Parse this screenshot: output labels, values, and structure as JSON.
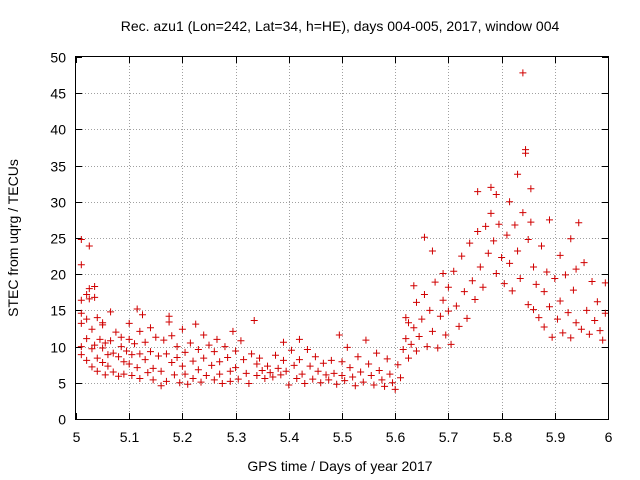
{
  "chart_data": {
    "type": "scatter",
    "title": "Rec. azu1 (Lon=242, Lat=34, h=HE), days 004-005, 2017, window 004",
    "xlabel": "GPS time / Days of year 2017",
    "ylabel": "STEC from uqrg / TECUs",
    "xlim": [
      5,
      6
    ],
    "ylim": [
      0,
      50
    ],
    "xticks": [
      "5",
      "5.1",
      "5.2",
      "5.3",
      "5.4",
      "5.5",
      "5.6",
      "5.7",
      "5.8",
      "5.9",
      "6"
    ],
    "yticks": [
      "0",
      "5",
      "10",
      "15",
      "20",
      "25",
      "30",
      "35",
      "40",
      "45",
      "50"
    ],
    "grid": true,
    "marker": "plus",
    "color": "#d00000",
    "series": [
      {
        "points": [
          [
            5.01,
            24.8
          ],
          [
            5.01,
            21.3
          ],
          [
            5.01,
            16.4
          ],
          [
            5.01,
            14.6
          ],
          [
            5.01,
            13.2
          ],
          [
            5.01,
            10.0
          ],
          [
            5.01,
            8.9
          ],
          [
            5.02,
            17.2
          ],
          [
            5.02,
            13.8
          ],
          [
            5.02,
            11.1
          ],
          [
            5.02,
            8.1
          ],
          [
            5.025,
            23.9
          ],
          [
            5.025,
            18.0
          ],
          [
            5.025,
            16.6
          ],
          [
            5.03,
            12.4
          ],
          [
            5.03,
            9.7
          ],
          [
            5.03,
            7.2
          ],
          [
            5.035,
            18.3
          ],
          [
            5.035,
            16.8
          ],
          [
            5.035,
            10.2
          ],
          [
            5.04,
            14.0
          ],
          [
            5.04,
            8.4
          ],
          [
            5.04,
            6.6
          ],
          [
            5.045,
            11.0
          ],
          [
            5.05,
            13.3
          ],
          [
            5.05,
            13.0
          ],
          [
            5.05,
            9.8
          ],
          [
            5.05,
            7.8
          ],
          [
            5.055,
            10.5
          ],
          [
            5.055,
            6.1
          ],
          [
            5.06,
            8.9
          ],
          [
            5.06,
            7.3
          ],
          [
            5.065,
            14.8
          ],
          [
            5.065,
            10.8
          ],
          [
            5.07,
            9.1
          ],
          [
            5.07,
            6.5
          ],
          [
            5.075,
            12.0
          ],
          [
            5.08,
            8.6
          ],
          [
            5.08,
            5.9
          ],
          [
            5.085,
            11.3
          ],
          [
            5.085,
            10.0
          ],
          [
            5.09,
            7.9
          ],
          [
            5.09,
            6.2
          ],
          [
            5.095,
            9.4
          ],
          [
            5.1,
            13.2
          ],
          [
            5.1,
            11.0
          ],
          [
            5.1,
            7.6
          ],
          [
            5.105,
            8.9
          ],
          [
            5.105,
            6.0
          ],
          [
            5.11,
            10.4
          ],
          [
            5.115,
            15.2
          ],
          [
            5.115,
            7.1
          ],
          [
            5.12,
            12.1
          ],
          [
            5.12,
            9.0
          ],
          [
            5.12,
            5.6
          ],
          [
            5.125,
            14.4
          ],
          [
            5.13,
            10.6
          ],
          [
            5.13,
            8.2
          ],
          [
            5.135,
            6.4
          ],
          [
            5.14,
            12.6
          ],
          [
            5.14,
            9.3
          ],
          [
            5.145,
            7.0
          ],
          [
            5.145,
            5.4
          ],
          [
            5.15,
            11.3
          ],
          [
            5.155,
            8.7
          ],
          [
            5.16,
            6.6
          ],
          [
            5.16,
            4.6
          ],
          [
            5.165,
            10.9
          ],
          [
            5.17,
            9.0
          ],
          [
            5.17,
            5.2
          ],
          [
            5.175,
            14.2
          ],
          [
            5.175,
            13.4
          ],
          [
            5.18,
            11.5
          ],
          [
            5.18,
            7.8
          ],
          [
            5.185,
            6.1
          ],
          [
            5.19,
            10.0
          ],
          [
            5.19,
            8.5
          ],
          [
            5.195,
            5.0
          ],
          [
            5.2,
            12.4
          ],
          [
            5.2,
            7.3
          ],
          [
            5.205,
            9.2
          ],
          [
            5.205,
            6.2
          ],
          [
            5.21,
            4.8
          ],
          [
            5.215,
            10.5
          ],
          [
            5.22,
            8.0
          ],
          [
            5.22,
            5.6
          ],
          [
            5.225,
            13.1
          ],
          [
            5.23,
            9.6
          ],
          [
            5.23,
            6.8
          ],
          [
            5.235,
            5.1
          ],
          [
            5.24,
            11.6
          ],
          [
            5.24,
            8.4
          ],
          [
            5.245,
            6.0
          ],
          [
            5.25,
            10.2
          ],
          [
            5.255,
            7.4
          ],
          [
            5.26,
            5.4
          ],
          [
            5.26,
            9.3
          ],
          [
            5.265,
            11.0
          ],
          [
            5.27,
            7.9
          ],
          [
            5.27,
            6.2
          ],
          [
            5.275,
            4.9
          ],
          [
            5.28,
            10.0
          ],
          [
            5.285,
            8.5
          ],
          [
            5.29,
            6.6
          ],
          [
            5.29,
            5.2
          ],
          [
            5.295,
            12.1
          ],
          [
            5.3,
            9.4
          ],
          [
            5.3,
            7.1
          ],
          [
            5.305,
            5.5
          ],
          [
            5.31,
            10.8
          ],
          [
            5.315,
            8.2
          ],
          [
            5.32,
            6.3
          ],
          [
            5.325,
            4.9
          ],
          [
            5.33,
            9.0
          ],
          [
            5.335,
            13.6
          ],
          [
            5.34,
            7.6
          ],
          [
            5.34,
            6.0
          ],
          [
            5.345,
            8.4
          ],
          [
            5.35,
            6.7
          ],
          [
            5.355,
            5.6
          ],
          [
            5.36,
            7.3
          ],
          [
            5.365,
            6.4
          ],
          [
            5.37,
            5.8
          ],
          [
            5.375,
            8.8
          ],
          [
            5.38,
            7.0
          ],
          [
            5.385,
            6.1
          ],
          [
            5.39,
            10.6
          ],
          [
            5.39,
            8.1
          ],
          [
            5.395,
            6.6
          ],
          [
            5.4,
            4.7
          ],
          [
            5.405,
            9.5
          ],
          [
            5.41,
            7.4
          ],
          [
            5.415,
            5.6
          ],
          [
            5.42,
            11.0
          ],
          [
            5.42,
            8.2
          ],
          [
            5.425,
            6.2
          ],
          [
            5.43,
            4.9
          ],
          [
            5.435,
            9.6
          ],
          [
            5.44,
            7.3
          ],
          [
            5.445,
            5.5
          ],
          [
            5.45,
            8.6
          ],
          [
            5.455,
            6.6
          ],
          [
            5.46,
            5.0
          ],
          [
            5.465,
            7.7
          ],
          [
            5.47,
            6.1
          ],
          [
            5.475,
            5.4
          ],
          [
            5.48,
            8.1
          ],
          [
            5.485,
            6.3
          ],
          [
            5.49,
            4.8
          ],
          [
            5.495,
            11.6
          ],
          [
            5.5,
            7.9
          ],
          [
            5.5,
            6.0
          ],
          [
            5.505,
            5.3
          ],
          [
            5.51,
            9.9
          ],
          [
            5.515,
            7.1
          ],
          [
            5.52,
            5.8
          ],
          [
            5.525,
            4.6
          ],
          [
            5.53,
            8.6
          ],
          [
            5.535,
            6.5
          ],
          [
            5.54,
            5.1
          ],
          [
            5.545,
            10.9
          ],
          [
            5.55,
            7.6
          ],
          [
            5.555,
            6.0
          ],
          [
            5.56,
            4.7
          ],
          [
            5.565,
            9.1
          ],
          [
            5.57,
            6.7
          ],
          [
            5.575,
            5.4
          ],
          [
            5.58,
            4.5
          ],
          [
            5.585,
            8.3
          ],
          [
            5.59,
            6.2
          ],
          [
            5.595,
            5.0
          ],
          [
            5.6,
            4.1
          ],
          [
            5.605,
            7.5
          ],
          [
            5.61,
            5.7
          ],
          [
            5.615,
            9.6
          ],
          [
            5.62,
            14.0
          ],
          [
            5.62,
            11.1
          ],
          [
            5.625,
            13.3
          ],
          [
            5.625,
            8.4
          ],
          [
            5.63,
            10.3
          ],
          [
            5.635,
            18.4
          ],
          [
            5.635,
            12.6
          ],
          [
            5.64,
            16.1
          ],
          [
            5.64,
            9.4
          ],
          [
            5.645,
            11.4
          ],
          [
            5.65,
            13.8
          ],
          [
            5.655,
            25.1
          ],
          [
            5.655,
            17.2
          ],
          [
            5.66,
            10.0
          ],
          [
            5.665,
            15.0
          ],
          [
            5.67,
            23.2
          ],
          [
            5.67,
            12.1
          ],
          [
            5.675,
            18.9
          ],
          [
            5.68,
            9.8
          ],
          [
            5.685,
            14.2
          ],
          [
            5.69,
            20.1
          ],
          [
            5.69,
            16.4
          ],
          [
            5.695,
            11.6
          ],
          [
            5.7,
            18.2
          ],
          [
            5.7,
            14.9
          ],
          [
            5.705,
            10.3
          ],
          [
            5.71,
            20.4
          ],
          [
            5.715,
            15.6
          ],
          [
            5.72,
            12.8
          ],
          [
            5.725,
            22.5
          ],
          [
            5.73,
            17.6
          ],
          [
            5.735,
            13.9
          ],
          [
            5.74,
            24.3
          ],
          [
            5.745,
            19.1
          ],
          [
            5.75,
            16.5
          ],
          [
            5.755,
            31.4
          ],
          [
            5.755,
            25.9
          ],
          [
            5.76,
            21.0
          ],
          [
            5.765,
            18.2
          ],
          [
            5.77,
            26.6
          ],
          [
            5.775,
            22.9
          ],
          [
            5.78,
            32.0
          ],
          [
            5.78,
            28.4
          ],
          [
            5.785,
            24.6
          ],
          [
            5.79,
            31.0
          ],
          [
            5.79,
            20.1
          ],
          [
            5.795,
            26.9
          ],
          [
            5.8,
            22.3
          ],
          [
            5.805,
            18.7
          ],
          [
            5.81,
            25.4
          ],
          [
            5.815,
            30.0
          ],
          [
            5.815,
            21.5
          ],
          [
            5.82,
            17.7
          ],
          [
            5.825,
            26.8
          ],
          [
            5.83,
            33.8
          ],
          [
            5.83,
            23.2
          ],
          [
            5.835,
            19.4
          ],
          [
            5.84,
            28.5
          ],
          [
            5.84,
            47.8
          ],
          [
            5.845,
            37.2
          ],
          [
            5.845,
            36.7
          ],
          [
            5.85,
            24.8
          ],
          [
            5.85,
            15.8
          ],
          [
            5.855,
            31.8
          ],
          [
            5.855,
            27.2
          ],
          [
            5.86,
            21.0
          ],
          [
            5.86,
            15.1
          ],
          [
            5.865,
            18.6
          ],
          [
            5.87,
            14.0
          ],
          [
            5.875,
            23.9
          ],
          [
            5.88,
            17.6
          ],
          [
            5.88,
            12.7
          ],
          [
            5.885,
            20.3
          ],
          [
            5.89,
            27.5
          ],
          [
            5.89,
            15.5
          ],
          [
            5.895,
            11.3
          ],
          [
            5.9,
            19.4
          ],
          [
            5.905,
            13.8
          ],
          [
            5.91,
            22.6
          ],
          [
            5.91,
            16.3
          ],
          [
            5.915,
            11.9
          ],
          [
            5.92,
            19.9
          ],
          [
            5.925,
            14.7
          ],
          [
            5.93,
            24.9
          ],
          [
            5.93,
            11.2
          ],
          [
            5.935,
            17.8
          ],
          [
            5.94,
            20.7
          ],
          [
            5.94,
            13.3
          ],
          [
            5.945,
            27.1
          ],
          [
            5.95,
            12.4
          ],
          [
            5.955,
            21.6
          ],
          [
            5.96,
            15.0
          ],
          [
            5.965,
            11.7
          ],
          [
            5.97,
            19.0
          ],
          [
            5.975,
            13.6
          ],
          [
            5.98,
            16.2
          ],
          [
            5.985,
            12.2
          ],
          [
            5.99,
            10.9
          ],
          [
            5.995,
            14.6
          ],
          [
            5.995,
            18.8
          ]
        ]
      }
    ]
  }
}
